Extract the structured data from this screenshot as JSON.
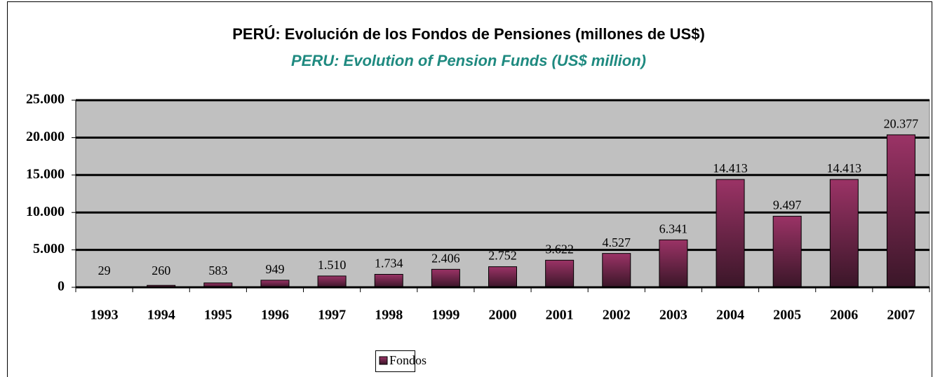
{
  "chart_data": {
    "type": "bar",
    "title": "PERÚ: Evolución de los Fondos de Pensiones (millones de US$)",
    "subtitle": "PERU: Evolution of Pension Funds (US$ million)",
    "categories": [
      "1993",
      "1994",
      "1995",
      "1996",
      "1997",
      "1998",
      "1999",
      "2000",
      "2001",
      "2002",
      "2003",
      "2004",
      "2005",
      "2006",
      "2007"
    ],
    "series": [
      {
        "name": "Fondos",
        "color": "#9b3366",
        "values": [
          29,
          260,
          583,
          949,
          1510,
          1734,
          2406,
          2752,
          3622,
          4527,
          6341,
          14413,
          9497,
          14413,
          20377
        ],
        "value_labels": [
          "29",
          "260",
          "583",
          "949",
          "1.510",
          "1.734",
          "2.406",
          "2.752",
          "3.622",
          "4.527",
          "6.341",
          "14.413",
          "9.497",
          "14.413",
          "20.377"
        ]
      }
    ],
    "ylim": [
      0,
      25000
    ],
    "yticks": [
      0,
      {
        "value": 5000,
        "label": "5.000"
      },
      {
        "value": 10000,
        "label": "10.000"
      },
      {
        "value": 15000,
        "label": "15.000"
      },
      {
        "value": 20000,
        "label": "20.000"
      },
      {
        "value": 25000,
        "label": "25.000"
      }
    ],
    "grid": true,
    "legend": "bottom"
  }
}
